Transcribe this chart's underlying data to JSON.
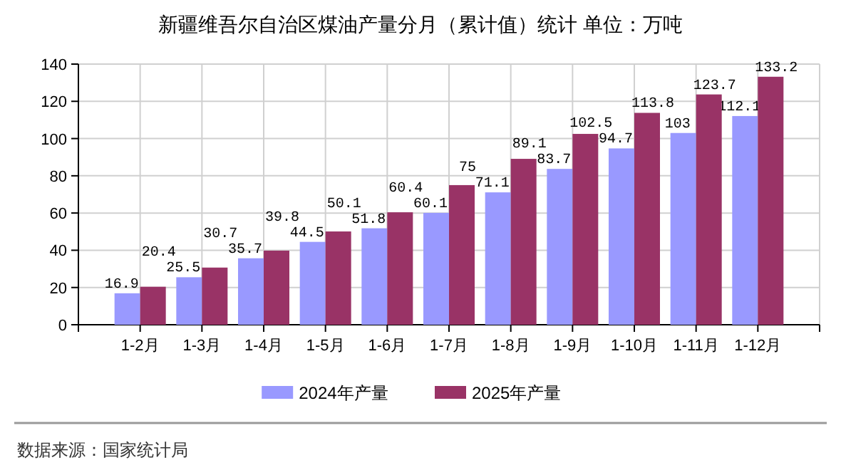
{
  "chart_data": {
    "type": "bar",
    "title": "新疆维吾尔自治区煤油产量分月（累计值）统计 单位：万吨",
    "categories": [
      "1-2月",
      "1-3月",
      "1-4月",
      "1-5月",
      "1-6月",
      "1-7月",
      "1-8月",
      "1-9月",
      "1-10月",
      "1-11月",
      "1-12月"
    ],
    "series": [
      {
        "name": "2024年产量",
        "color": "#9999ff",
        "values": [
          16.9,
          25.5,
          35.7,
          44.5,
          51.8,
          60.1,
          71.1,
          83.7,
          94.7,
          103,
          112.1
        ]
      },
      {
        "name": "2025年产量",
        "color": "#993366",
        "values": [
          20.4,
          30.7,
          39.8,
          50.1,
          60.4,
          75,
          89.1,
          102.5,
          113.8,
          123.7,
          133.2
        ]
      }
    ],
    "ylim": [
      0,
      140
    ],
    "yticks": [
      0,
      20,
      40,
      60,
      80,
      100,
      120,
      140
    ],
    "grid": true,
    "legend": "bottom",
    "data_labels": true,
    "annotations": [
      "数据来源：国家统计局"
    ]
  }
}
